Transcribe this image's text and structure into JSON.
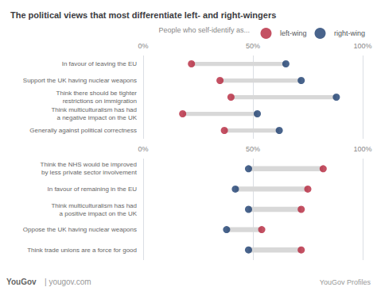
{
  "chart_data": [
    {
      "type": "dumbbell",
      "title": "The political views that most differentiate left- and right-wingers",
      "orientation": "horizontal",
      "legend": "top-right",
      "grid": true,
      "annotations": [
        "People who self-identify as...",
        "YouGov",
        "| yougov.com",
        "YouGov Profiles"
      ],
      "categories": [
        "In favour of leaving the EU",
        "Support the UK having nuclear weapons",
        "Think there should be tighter\nrestrictions on immigration",
        "Think multiculturalism has had\na negative impact on the UK",
        "Generally against political correctness"
      ],
      "series": [
        {
          "name": "left-wing",
          "color": "#b5263c",
          "values": [
            22,
            35,
            40,
            18,
            37
          ]
        },
        {
          "name": "right-wing",
          "color": "#1b3d6f",
          "values": [
            65,
            72,
            88,
            52,
            62
          ]
        }
      ],
      "xlim": [
        0,
        100
      ],
      "xticks": [
        {
          "value": 0,
          "label": "0%"
        },
        {
          "value": 50,
          "label": "50%"
        },
        {
          "value": 100,
          "label": "100%"
        }
      ]
    },
    {
      "type": "dumbbell",
      "orientation": "horizontal",
      "grid": true,
      "categories": [
        "Think the NHS would be improved\nby less private sector involvement",
        "In favour of remaining in the EU",
        "Think multiculturalism has had\na positive impact on the UK",
        "Oppose the UK having nuclear weapons",
        "Think trade unions are a force for good"
      ],
      "series": [
        {
          "name": "left-wing",
          "color": "#b5263c",
          "values": [
            82,
            75,
            72,
            54,
            72
          ]
        },
        {
          "name": "right-wing",
          "color": "#1b3d6f",
          "values": [
            48,
            42,
            48,
            38,
            48
          ]
        }
      ],
      "xlim": [
        0,
        100
      ],
      "xticks": [
        {
          "value": 0,
          "label": "0%"
        },
        {
          "value": 50,
          "label": "50%"
        },
        {
          "value": 100,
          "label": "100%"
        }
      ]
    }
  ]
}
